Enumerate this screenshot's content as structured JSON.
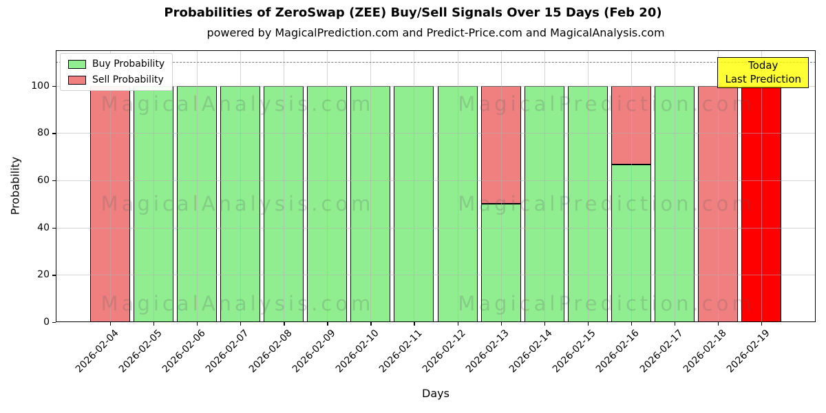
{
  "title": "Probabilities of ZeroSwap (ZEE) Buy/Sell Signals Over 15 Days (Feb 20)",
  "subtitle": "powered by MagicalPrediction.com and Predict-Price.com and MagicalAnalysis.com",
  "legend": [
    {
      "label": "Buy Probability",
      "color": "#90EE90"
    },
    {
      "label": "Sell Probability",
      "color": "#F08080"
    }
  ],
  "annotation": {
    "line1": "Today",
    "line2": "Last Prediction",
    "bg_color": "#FFFF00"
  },
  "watermark": {
    "left_text": "MagicalAnalysis.com",
    "right_text": "MagicalPrediction.com"
  },
  "axes": {
    "xlabel": "Days",
    "ylabel": "Probability",
    "yticks": [
      0,
      20,
      40,
      60,
      80,
      100
    ],
    "ylim": [
      0,
      115
    ],
    "dashed_line_y": 110,
    "grid": "on"
  },
  "colors": {
    "buy": "#90EE90",
    "sell": "#F08080",
    "today": "#FF0000",
    "bar_edge": "#000000",
    "grid": "#B0B0B0",
    "dashed_line": "#7A7A7A",
    "annotation_border": "#000000"
  },
  "chart_data": {
    "type": "bar",
    "stacked": true,
    "title": "Probabilities of ZeroSwap (ZEE) Buy/Sell Signals Over 15 Days (Feb 20)",
    "xlabel": "Days",
    "ylabel": "Probability",
    "ylim": [
      0,
      115
    ],
    "legend_position": "upper left",
    "categories": [
      "2026-02-04",
      "2026-02-05",
      "2026-02-06",
      "2026-02-07",
      "2026-02-08",
      "2026-02-09",
      "2026-02-10",
      "2026-02-11",
      "2026-02-12",
      "2026-02-13",
      "2026-02-14",
      "2026-02-15",
      "2026-02-16",
      "2026-02-17",
      "2026-02-18",
      "2026-02-19"
    ],
    "series": [
      {
        "name": "Buy Probability",
        "color": "#90EE90",
        "values": [
          0,
          100,
          100,
          100,
          100,
          100,
          100,
          100,
          100,
          50,
          100,
          100,
          66.7,
          100,
          0,
          0
        ]
      },
      {
        "name": "Sell Probability",
        "color": "#F08080",
        "values": [
          100,
          0,
          0,
          0,
          0,
          0,
          0,
          0,
          0,
          50,
          0,
          0,
          33.3,
          0,
          100,
          0
        ]
      },
      {
        "name": "Today Last Prediction",
        "color": "#FF0000",
        "values": [
          0,
          0,
          0,
          0,
          0,
          0,
          0,
          0,
          0,
          0,
          0,
          0,
          0,
          0,
          0,
          100
        ]
      }
    ]
  }
}
